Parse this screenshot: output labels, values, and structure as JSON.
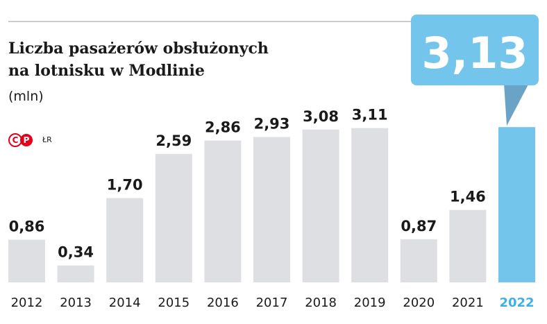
{
  "title_line1": "Liczba pasażerów obsłużonych",
  "title_line2": "na lotnisku w Modlinie",
  "unit": "(mln)",
  "logo": {
    "c_glyph": "C",
    "p_glyph": "P",
    "author": "ŁR"
  },
  "highlight_label": "3,13",
  "colors": {
    "bar": "#dddfe3",
    "highlight": "#74c5ec",
    "highlight_year": "#3db1e6",
    "pointer": "#6aa3c6",
    "text": "#1a1a1a",
    "logo": "#e3001b"
  },
  "chart_data": {
    "type": "bar",
    "categories": [
      "2012",
      "2013",
      "2014",
      "2015",
      "2016",
      "2017",
      "2018",
      "2019",
      "2020",
      "2021",
      "2022"
    ],
    "values": [
      0.86,
      0.34,
      1.7,
      2.59,
      2.86,
      2.93,
      3.08,
      3.11,
      0.87,
      1.46,
      3.13
    ],
    "value_labels": [
      "0,86",
      "0,34",
      "1,70",
      "2,59",
      "2,86",
      "2,93",
      "3,08",
      "3,11",
      "0,87",
      "1,46",
      ""
    ],
    "highlight_index": 10,
    "ylim": [
      0,
      3.13
    ],
    "grid": false,
    "legend": "none"
  }
}
